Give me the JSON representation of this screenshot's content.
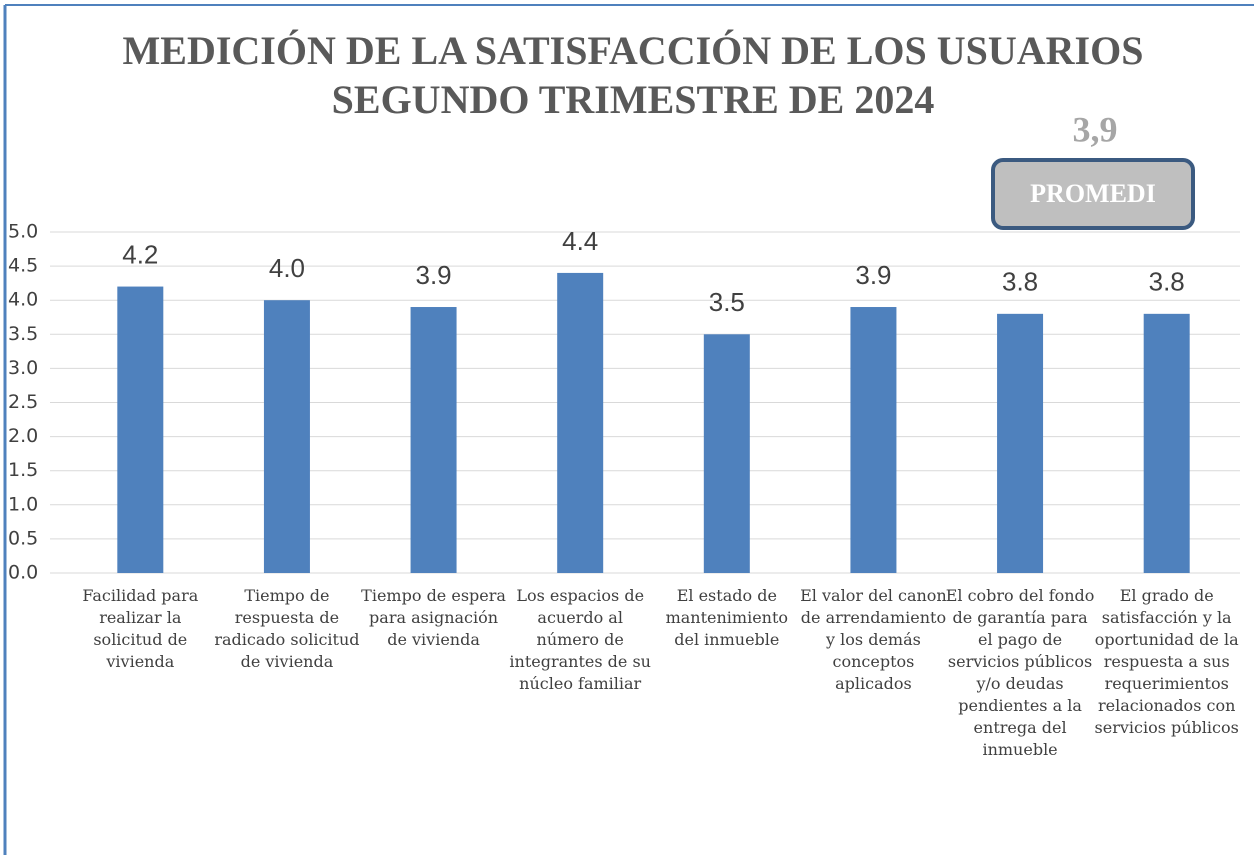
{
  "chart_data": {
    "type": "bar",
    "title": [
      "MEDICIÓN DE LA SATISFACCIÓN DE LOS USUARIOS",
      "SEGUNDO TRIMESTRE DE 2024"
    ],
    "annotations": [
      "3,9",
      "PROMEDI"
    ],
    "categories": [
      "Facilidad para realizar la solicitud de vivienda",
      "Tiempo de respuesta de radicado solicitud de vivienda",
      "Tiempo de espera para asignación de vivienda",
      "Los espacios de acuerdo al número de integrantes de su núcleo familiar",
      "El estado de mantenimiento del inmueble",
      "El valor del canon de arrendamiento y los demás conceptos aplicados",
      "El cobro del fondo de garantía para el pago de servicios públicos y/o deudas pendientes a la entrega del inmueble",
      "El grado de satisfacción y la oportunidad de la respuesta a sus requerimientos relacionados con servicios públicos"
    ],
    "values": [
      4.2,
      4.0,
      3.9,
      4.4,
      3.5,
      3.9,
      3.8,
      3.8
    ],
    "value_labels": [
      "4.2",
      "4.0",
      "3.9",
      "4.4",
      "3.5",
      "3.9",
      "3.8",
      "3.8"
    ],
    "color": "#4f81bd",
    "ylim": [
      0,
      5
    ],
    "yticks": [
      {
        "value": 0,
        "label": "0.0"
      },
      0.5,
      {
        "value": 1,
        "label": "1.0"
      },
      1.5,
      {
        "value": 2,
        "label": "2.0"
      },
      2.5,
      {
        "value": 3,
        "label": "3.0"
      },
      3.5,
      {
        "value": 4,
        "label": "4.0"
      },
      4.5,
      {
        "value": 5,
        "label": "5.0"
      }
    ],
    "grid": true
  }
}
